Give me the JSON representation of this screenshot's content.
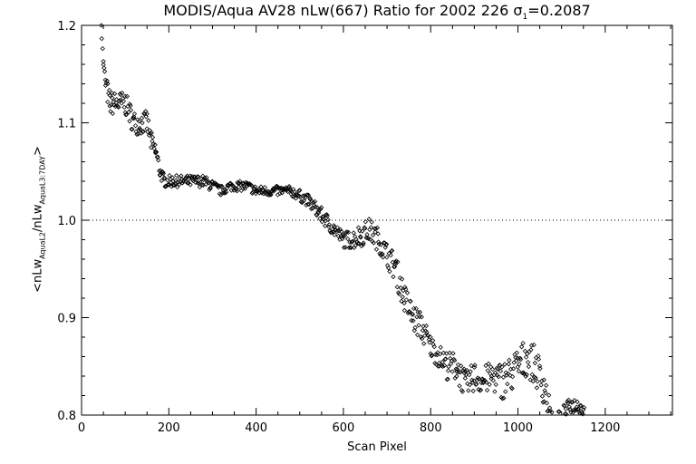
{
  "chart_data": {
    "type": "scatter",
    "title": {
      "prefix": "MODIS/Aqua AV28 nLw(667) Ratio for 2002 226 ",
      "sigma": "σ",
      "sigma_sub": "1",
      "suffix": "=0.2087"
    },
    "xlabel": "Scan Pixel",
    "ylabel": {
      "open": "<nLw",
      "sub1": "AquaL2",
      "mid": "/nLw",
      "sub2": "AquaL3:7DAY",
      "close": ">"
    },
    "xlim": [
      0,
      1354
    ],
    "ylim": [
      0.8,
      1.2
    ],
    "x_ticks": [
      0,
      200,
      400,
      600,
      800,
      1000,
      1200
    ],
    "x_tick_labels": [
      "0",
      "200",
      "400",
      "600",
      "800",
      "1000",
      "1200"
    ],
    "y_ticks": [
      0.8,
      0.9,
      1.0,
      1.1,
      1.2
    ],
    "y_tick_labels": [
      "0.8",
      "0.9",
      "1.0",
      "1.1",
      "1.2"
    ],
    "reference_line": {
      "y": 1.0,
      "style": "dotted"
    },
    "marker": "diamond",
    "series": [
      {
        "x": [
          45,
          50,
          55,
          60,
          65,
          70,
          80,
          90,
          100,
          110,
          120,
          130,
          140,
          150,
          160,
          170,
          180,
          190,
          200,
          210,
          220,
          240,
          260,
          280,
          300,
          320,
          340,
          360,
          380,
          400,
          420,
          440,
          460,
          480,
          500,
          520,
          540,
          560,
          580,
          600,
          620,
          640,
          660,
          680,
          700,
          720,
          740,
          760,
          780,
          800,
          820,
          840,
          860,
          880,
          900,
          920,
          940,
          960,
          980,
          1000,
          1020,
          1040,
          1060,
          1080,
          1100,
          1120,
          1140,
          1160
        ],
        "y": [
          1.2,
          1.16,
          1.14,
          1.13,
          1.12,
          1.12,
          1.12,
          1.12,
          1.12,
          1.11,
          1.1,
          1.1,
          1.1,
          1.1,
          1.08,
          1.07,
          1.05,
          1.04,
          1.04,
          1.04,
          1.04,
          1.04,
          1.04,
          1.04,
          1.035,
          1.03,
          1.035,
          1.035,
          1.035,
          1.03,
          1.03,
          1.03,
          1.03,
          1.03,
          1.025,
          1.02,
          1.01,
          1.0,
          0.99,
          0.98,
          0.98,
          0.985,
          0.99,
          0.98,
          0.965,
          0.95,
          0.92,
          0.9,
          0.89,
          0.87,
          0.86,
          0.85,
          0.85,
          0.83,
          0.84,
          0.835,
          0.84,
          0.835,
          0.84,
          0.85,
          0.86,
          0.85,
          0.83,
          0.79,
          0.8,
          0.81,
          0.81,
          0.8
        ],
        "spread": [
          0,
          0.006,
          0.01,
          0.012,
          0.012,
          0.012,
          0.012,
          0.012,
          0.012,
          0.012,
          0.012,
          0.012,
          0.012,
          0.012,
          0.01,
          0.01,
          0.008,
          0.006,
          0.006,
          0.006,
          0.006,
          0.006,
          0.006,
          0.006,
          0.006,
          0.005,
          0.005,
          0.005,
          0.005,
          0.005,
          0.005,
          0.005,
          0.005,
          0.005,
          0.006,
          0.006,
          0.008,
          0.008,
          0.008,
          0.008,
          0.01,
          0.012,
          0.012,
          0.012,
          0.012,
          0.015,
          0.015,
          0.015,
          0.015,
          0.012,
          0.012,
          0.015,
          0.015,
          0.015,
          0.015,
          0.015,
          0.015,
          0.02,
          0.02,
          0.02,
          0.02,
          0.02,
          0.02,
          0.008,
          0.008,
          0.008,
          0.008,
          0.006
        ]
      }
    ]
  }
}
